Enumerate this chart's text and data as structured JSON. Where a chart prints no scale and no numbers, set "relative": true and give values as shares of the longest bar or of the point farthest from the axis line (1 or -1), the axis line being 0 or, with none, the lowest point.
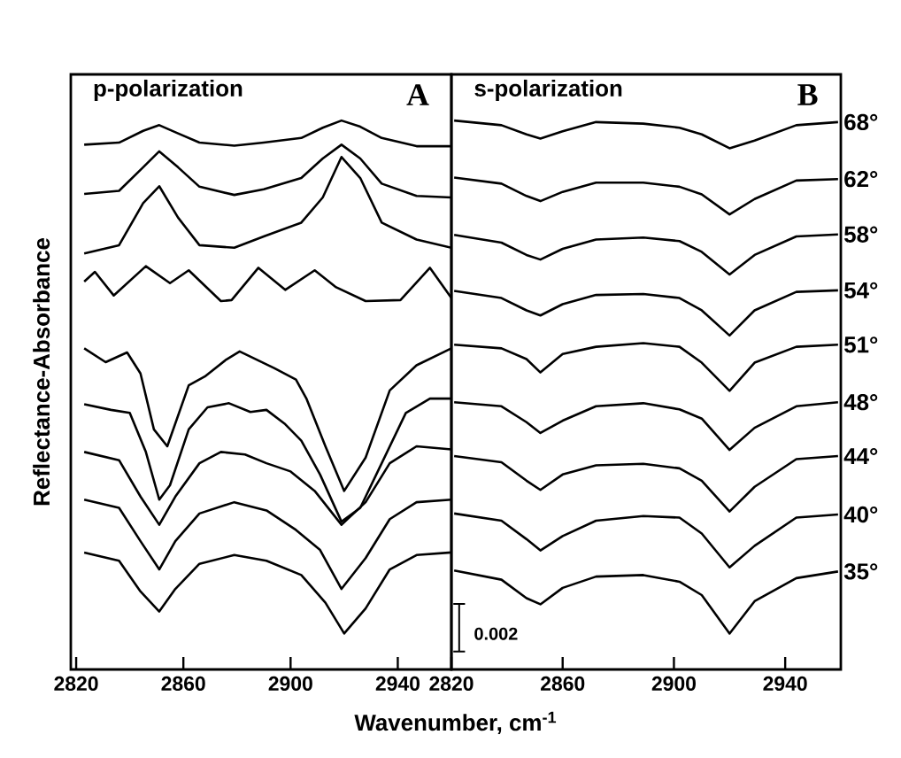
{
  "chart_data": [
    {
      "type": "line",
      "title": "p-polarization",
      "ylabel": "Reflectance-Absorbance",
      "xlabel": "Wavenumber, cm$^{-1}$",
      "annotations": [
        "A"
      ],
      "relative": true,
      "xlim": [
        2818,
        2960
      ],
      "xticks": [
        2820,
        2860,
        2900,
        2940
      ],
      "tick_labels": "x",
      "marker": "none",
      "line_style": "solid",
      "series": [
        {
          "color": "#000000",
          "x": [
            2823,
            2836,
            2845,
            2851,
            2858,
            2866,
            2879,
            2890,
            2904,
            2912,
            2919,
            2926,
            2934,
            2947,
            2960
          ],
          "values": [
            0.953,
            0.957,
            0.98,
            0.991,
            0.975,
            0.957,
            0.951,
            0.957,
            0.966,
            0.986,
            1.0,
            0.988,
            0.966,
            0.95,
            0.95
          ]
        },
        {
          "color": "#000000",
          "x": [
            2823,
            2836,
            2845,
            2851,
            2858,
            2866,
            2879,
            2890,
            2904,
            2912,
            2919,
            2926,
            2934,
            2947,
            2960
          ],
          "values": [
            0.857,
            0.863,
            0.909,
            0.94,
            0.909,
            0.871,
            0.855,
            0.866,
            0.888,
            0.926,
            0.953,
            0.926,
            0.877,
            0.853,
            0.85
          ]
        },
        {
          "color": "#000000",
          "x": [
            2823,
            2836,
            2845,
            2851,
            2858,
            2866,
            2879,
            2890,
            2904,
            2912,
            2919,
            2926,
            2934,
            2947,
            2960
          ],
          "values": [
            0.741,
            0.757,
            0.839,
            0.872,
            0.811,
            0.757,
            0.752,
            0.774,
            0.801,
            0.85,
            0.929,
            0.888,
            0.801,
            0.768,
            0.752
          ]
        },
        {
          "color": "#000000",
          "x": [
            2823,
            2827,
            2834,
            2846,
            2855,
            2862,
            2874,
            2878,
            2888,
            2898,
            2909,
            2917,
            2928,
            2941,
            2952,
            2960
          ],
          "values": [
            0.686,
            0.705,
            0.659,
            0.716,
            0.683,
            0.708,
            0.648,
            0.65,
            0.713,
            0.67,
            0.708,
            0.675,
            0.648,
            0.65,
            0.713,
            0.654
          ]
        },
        {
          "color": "#000000",
          "x": [
            2823,
            2831,
            2839,
            2844,
            2849,
            2854,
            2862,
            2868,
            2876,
            2881,
            2894,
            2902,
            2906,
            2913,
            2920,
            2928,
            2937,
            2947,
            2960
          ],
          "values": [
            0.556,
            0.529,
            0.548,
            0.507,
            0.398,
            0.365,
            0.484,
            0.501,
            0.534,
            0.55,
            0.517,
            0.495,
            0.457,
            0.365,
            0.278,
            0.343,
            0.474,
            0.523,
            0.556
          ]
        },
        {
          "color": "#000000",
          "x": [
            2823,
            2833,
            2840,
            2846,
            2851,
            2855,
            2862,
            2869,
            2877,
            2885,
            2891,
            2898,
            2904,
            2911,
            2919,
            2926,
            2934,
            2943,
            2952,
            2960
          ],
          "values": [
            0.447,
            0.436,
            0.43,
            0.354,
            0.261,
            0.289,
            0.398,
            0.441,
            0.449,
            0.432,
            0.436,
            0.408,
            0.376,
            0.31,
            0.218,
            0.245,
            0.332,
            0.43,
            0.458,
            0.458
          ]
        },
        {
          "color": "#000000",
          "x": [
            2823,
            2836,
            2844,
            2851,
            2857,
            2866,
            2874,
            2883,
            2891,
            2900,
            2909,
            2919,
            2928,
            2937,
            2947,
            2960
          ],
          "values": [
            0.354,
            0.338,
            0.267,
            0.212,
            0.267,
            0.332,
            0.354,
            0.349,
            0.332,
            0.316,
            0.278,
            0.212,
            0.256,
            0.332,
            0.365,
            0.359
          ]
        },
        {
          "color": "#000000",
          "x": [
            2823,
            2836,
            2844,
            2851,
            2857,
            2866,
            2879,
            2891,
            2902,
            2911,
            2919,
            2928,
            2937,
            2947,
            2960
          ],
          "values": [
            0.261,
            0.245,
            0.18,
            0.125,
            0.18,
            0.234,
            0.256,
            0.24,
            0.202,
            0.163,
            0.087,
            0.147,
            0.223,
            0.256,
            0.261
          ]
        },
        {
          "color": "#000000",
          "x": [
            2823,
            2836,
            2844,
            2851,
            2857,
            2866,
            2879,
            2891,
            2904,
            2913,
            2920,
            2928,
            2937,
            2947,
            2960
          ],
          "values": [
            0.158,
            0.142,
            0.082,
            0.043,
            0.087,
            0.136,
            0.153,
            0.142,
            0.114,
            0.06,
            0.0,
            0.049,
            0.125,
            0.153,
            0.158
          ]
        }
      ]
    },
    {
      "type": "line",
      "title": "s-polarization",
      "annotations": [
        "B",
        "0.002"
      ],
      "relative": true,
      "xlim": [
        2820,
        2960
      ],
      "xticks": [
        2820,
        2860,
        2900,
        2940
      ],
      "tick_labels": "x",
      "marker": "none",
      "line_style": "solid",
      "x": [
        2821,
        2838,
        2847,
        2852,
        2860,
        2872,
        2889,
        2902,
        2910,
        2920,
        2929,
        2944,
        2959
      ],
      "series": [
        {
          "name": "68°",
          "color": "#000000",
          "values": [
            1.0,
            0.991,
            0.973,
            0.965,
            0.979,
            0.997,
            0.994,
            0.986,
            0.973,
            0.946,
            0.961,
            0.991,
            0.997
          ]
        },
        {
          "name": "62°",
          "color": "#000000",
          "values": [
            0.889,
            0.877,
            0.853,
            0.843,
            0.861,
            0.879,
            0.879,
            0.871,
            0.856,
            0.817,
            0.847,
            0.883,
            0.886
          ]
        },
        {
          "name": "58°",
          "color": "#000000",
          "values": [
            0.777,
            0.762,
            0.738,
            0.729,
            0.75,
            0.768,
            0.772,
            0.765,
            0.744,
            0.7,
            0.738,
            0.774,
            0.778
          ]
        },
        {
          "name": "54°",
          "color": "#000000",
          "values": [
            0.668,
            0.654,
            0.63,
            0.62,
            0.642,
            0.66,
            0.662,
            0.654,
            0.63,
            0.581,
            0.63,
            0.666,
            0.669
          ]
        },
        {
          "name": "51°",
          "color": "#000000",
          "values": [
            0.563,
            0.556,
            0.535,
            0.509,
            0.545,
            0.559,
            0.566,
            0.559,
            0.528,
            0.473,
            0.528,
            0.559,
            0.563
          ]
        },
        {
          "name": "48°",
          "color": "#000000",
          "values": [
            0.451,
            0.443,
            0.412,
            0.391,
            0.415,
            0.443,
            0.449,
            0.437,
            0.419,
            0.358,
            0.401,
            0.443,
            0.451
          ]
        },
        {
          "name": "44°",
          "color": "#000000",
          "values": [
            0.346,
            0.334,
            0.298,
            0.28,
            0.31,
            0.328,
            0.331,
            0.322,
            0.298,
            0.238,
            0.286,
            0.34,
            0.346
          ]
        },
        {
          "name": "40°",
          "color": "#000000",
          "values": [
            0.234,
            0.22,
            0.184,
            0.162,
            0.19,
            0.22,
            0.229,
            0.226,
            0.195,
            0.129,
            0.171,
            0.226,
            0.232
          ]
        },
        {
          "name": "35°",
          "color": "#000000",
          "values": [
            0.123,
            0.105,
            0.069,
            0.057,
            0.089,
            0.111,
            0.114,
            0.101,
            0.075,
            0.0,
            0.063,
            0.108,
            0.121
          ]
        }
      ]
    }
  ]
}
